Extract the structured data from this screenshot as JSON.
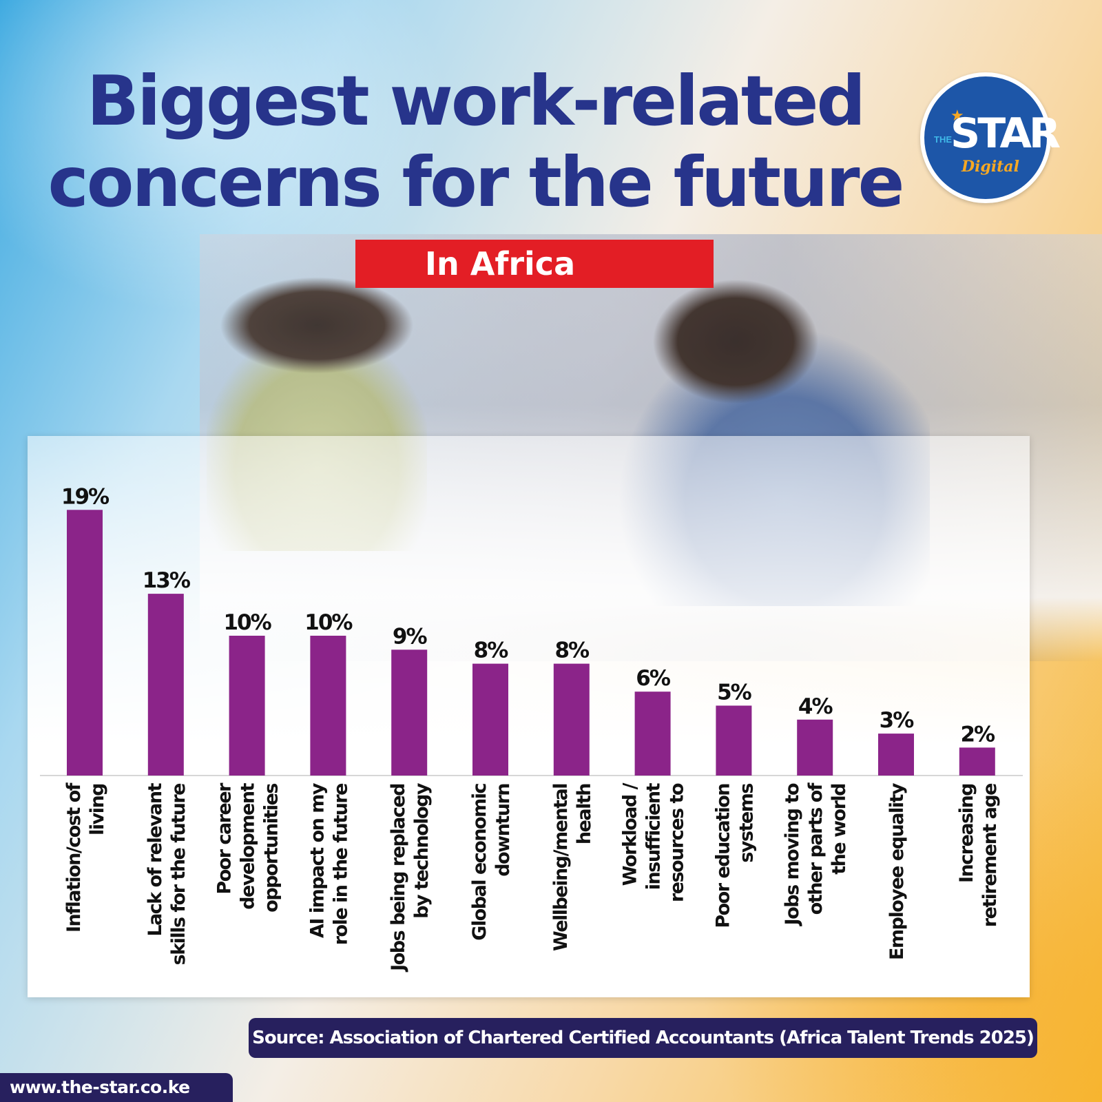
{
  "header": {
    "title_line1": "Biggest work-related",
    "title_line2": "concerns for the future",
    "subtitle": "In Africa"
  },
  "logo": {
    "the": "THE",
    "word": "STAR",
    "digital": "Digital"
  },
  "footer": {
    "source": "Source: Association of Chartered Certified Accountants (Africa Talent Trends 2025)",
    "url": "www.the-star.co.ke"
  },
  "colors": {
    "title": "#27348b",
    "subtitle_bg": "#e31e25",
    "bar": "#8b2489",
    "footer_bg": "#27205e",
    "logo_bg": "#1d56a8",
    "logo_accent": "#f7a823"
  },
  "chart_data": {
    "type": "bar",
    "title": "Biggest work-related concerns for the future",
    "subtitle": "In Africa",
    "ylim": [
      0,
      20
    ],
    "unit": "%",
    "grid": false,
    "categories": [
      [
        "Inflation/cost of",
        "living"
      ],
      [
        "Lack of relevant",
        "skills for the future"
      ],
      [
        "Poor career",
        "development",
        "opportunities"
      ],
      [
        "AI impact on my",
        "role in the future"
      ],
      [
        "Jobs being replaced",
        "by technology"
      ],
      [
        "Global economic",
        "downturn"
      ],
      [
        "Wellbeing/mental",
        "health"
      ],
      [
        "Workload /",
        "insufficient",
        "resources to"
      ],
      [
        "Poor education",
        "systems"
      ],
      [
        "Jobs moving to",
        "other parts of",
        "the world"
      ],
      [
        "Employee equality"
      ],
      [
        "Increasing",
        "retirement age"
      ]
    ],
    "values": [
      19,
      13,
      10,
      10,
      9,
      8,
      8,
      6,
      5,
      4,
      3,
      2
    ],
    "value_labels": [
      "19%",
      "13%",
      "10%",
      "10%",
      "9%",
      "8%",
      "8%",
      "6%",
      "5%",
      "4%",
      "3%",
      "2%"
    ]
  }
}
